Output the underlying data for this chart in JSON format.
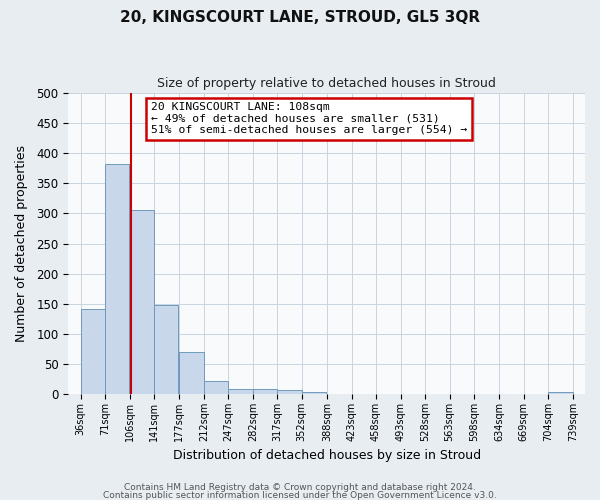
{
  "title_line1": "20, KINGSCOURT LANE, STROUD, GL5 3QR",
  "title_line2": "Size of property relative to detached houses in Stroud",
  "xlabel": "Distribution of detached houses by size in Stroud",
  "ylabel": "Number of detached properties",
  "bin_edges": [
    36,
    71,
    106,
    141,
    177,
    212,
    247,
    282,
    317,
    352,
    388,
    423,
    458,
    493,
    528,
    563,
    598,
    634,
    669,
    704,
    739
  ],
  "bar_heights": [
    142,
    383,
    306,
    148,
    70,
    22,
    9,
    9,
    7,
    3,
    0,
    0,
    0,
    0,
    0,
    0,
    0,
    0,
    0,
    4
  ],
  "bar_color": "#c8d8ea",
  "bar_edge_color": "#7099bb",
  "property_size": 108,
  "vline_color": "#cc0000",
  "annotation_box_color": "#cc0000",
  "annotation_text_line1": "20 KINGSCOURT LANE: 108sqm",
  "annotation_text_line2": "← 49% of detached houses are smaller (531)",
  "annotation_text_line3": "51% of semi-detached houses are larger (554) →",
  "ylim": [
    0,
    500
  ],
  "tick_labels": [
    "36sqm",
    "71sqm",
    "106sqm",
    "141sqm",
    "177sqm",
    "212sqm",
    "247sqm",
    "282sqm",
    "317sqm",
    "352sqm",
    "388sqm",
    "423sqm",
    "458sqm",
    "493sqm",
    "528sqm",
    "563sqm",
    "598sqm",
    "634sqm",
    "669sqm",
    "704sqm",
    "739sqm"
  ],
  "footer_line1": "Contains HM Land Registry data © Crown copyright and database right 2024.",
  "footer_line2": "Contains public sector information licensed under the Open Government Licence v3.0.",
  "background_color": "#e8edf2",
  "plot_bg_color": "#f8fafc",
  "grid_color": "#c8d4e0"
}
